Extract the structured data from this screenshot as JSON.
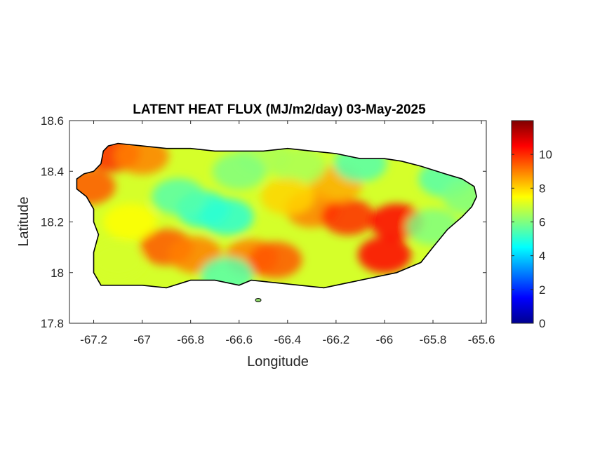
{
  "chart_data": {
    "type": "heatmap",
    "title": "LATENT HEAT FLUX (MJ/m2/day) 03-May-2025",
    "xlabel": "Longitude",
    "ylabel": "Latitude",
    "xlim": [
      -67.3,
      -65.58
    ],
    "ylim": [
      17.8,
      18.6
    ],
    "xticks": [
      -67.2,
      -67,
      -66.8,
      -66.6,
      -66.4,
      -66.2,
      -66,
      -65.8,
      -65.6
    ],
    "xtick_labels": [
      "-67.2",
      "-67",
      "-66.8",
      "-66.6",
      "-66.4",
      "-66.2",
      "-66",
      "-65.8",
      "-65.6"
    ],
    "yticks": [
      17.8,
      18,
      18.2,
      18.4,
      18.6
    ],
    "ytick_labels": [
      "17.8",
      "18",
      "18.2",
      "18.4",
      "18.6"
    ],
    "colorbar": {
      "colormap": "jet",
      "range": [
        0,
        12
      ],
      "ticks": [
        0,
        2,
        4,
        6,
        8,
        10
      ],
      "tick_labels": [
        "0",
        "2",
        "4",
        "6",
        "8",
        "10"
      ]
    },
    "grid": false,
    "region_outline": [
      [
        -67.27,
        18.37
      ],
      [
        -67.24,
        18.39
      ],
      [
        -67.2,
        18.4
      ],
      [
        -67.17,
        18.43
      ],
      [
        -67.16,
        18.48
      ],
      [
        -67.14,
        18.5
      ],
      [
        -67.1,
        18.51
      ],
      [
        -67.0,
        18.5
      ],
      [
        -66.9,
        18.49
      ],
      [
        -66.8,
        18.49
      ],
      [
        -66.7,
        18.48
      ],
      [
        -66.6,
        18.48
      ],
      [
        -66.5,
        18.48
      ],
      [
        -66.4,
        18.49
      ],
      [
        -66.3,
        18.48
      ],
      [
        -66.2,
        18.47
      ],
      [
        -66.1,
        18.45
      ],
      [
        -66.0,
        18.45
      ],
      [
        -65.93,
        18.44
      ],
      [
        -65.85,
        18.42
      ],
      [
        -65.75,
        18.39
      ],
      [
        -65.68,
        18.37
      ],
      [
        -65.63,
        18.34
      ],
      [
        -65.62,
        18.3
      ],
      [
        -65.64,
        18.26
      ],
      [
        -65.68,
        18.22
      ],
      [
        -65.74,
        18.17
      ],
      [
        -65.8,
        18.1
      ],
      [
        -65.85,
        18.04
      ],
      [
        -65.95,
        18.0
      ],
      [
        -66.05,
        17.98
      ],
      [
        -66.15,
        17.96
      ],
      [
        -66.25,
        17.94
      ],
      [
        -66.35,
        17.95
      ],
      [
        -66.45,
        17.96
      ],
      [
        -66.55,
        17.97
      ],
      [
        -66.6,
        17.95
      ],
      [
        -66.7,
        17.97
      ],
      [
        -66.8,
        17.97
      ],
      [
        -66.9,
        17.94
      ],
      [
        -67.0,
        17.95
      ],
      [
        -67.1,
        17.95
      ],
      [
        -67.17,
        17.95
      ],
      [
        -67.2,
        18.0
      ],
      [
        -67.2,
        18.08
      ],
      [
        -67.18,
        18.15
      ],
      [
        -67.2,
        18.2
      ],
      [
        -67.2,
        18.25
      ],
      [
        -67.23,
        18.3
      ],
      [
        -67.27,
        18.33
      ]
    ],
    "value_hotspots": [
      {
        "lon": -67.22,
        "lat": 18.34,
        "value": 9.5
      },
      {
        "lon": -67.12,
        "lat": 18.47,
        "value": 10.0
      },
      {
        "lon": -67.0,
        "lat": 18.46,
        "value": 9.0
      },
      {
        "lon": -66.9,
        "lat": 18.1,
        "value": 9.5
      },
      {
        "lon": -66.78,
        "lat": 18.07,
        "value": 9.0
      },
      {
        "lon": -66.55,
        "lat": 18.06,
        "value": 9.0
      },
      {
        "lon": -66.45,
        "lat": 18.05,
        "value": 9.5
      },
      {
        "lon": -66.3,
        "lat": 18.25,
        "value": 9.0
      },
      {
        "lon": -66.15,
        "lat": 18.22,
        "value": 10.0
      },
      {
        "lon": -66.0,
        "lat": 18.07,
        "value": 10.5
      },
      {
        "lon": -65.95,
        "lat": 18.2,
        "value": 10.5
      },
      {
        "lon": -66.2,
        "lat": 18.35,
        "value": 8.5
      },
      {
        "lon": -66.75,
        "lat": 18.25,
        "value": 5.0
      },
      {
        "lon": -66.65,
        "lat": 18.22,
        "value": 5.0
      },
      {
        "lon": -66.85,
        "lat": 18.3,
        "value": 5.5
      },
      {
        "lon": -65.75,
        "lat": 18.37,
        "value": 5.5
      },
      {
        "lon": -65.8,
        "lat": 18.18,
        "value": 6.0
      },
      {
        "lon": -66.1,
        "lat": 18.43,
        "value": 5.5
      },
      {
        "lon": -66.5,
        "lat": 18.46,
        "value": 6.5
      },
      {
        "lon": -66.35,
        "lat": 18.42,
        "value": 6.5
      },
      {
        "lon": -66.4,
        "lat": 18.3,
        "value": 8.0
      },
      {
        "lon": -66.6,
        "lat": 18.4,
        "value": 6.0
      },
      {
        "lon": -67.05,
        "lat": 18.2,
        "value": 7.5
      },
      {
        "lon": -67.1,
        "lat": 18.05,
        "value": 7.0
      },
      {
        "lon": -66.65,
        "lat": 17.99,
        "value": 5.5
      },
      {
        "lon": -65.65,
        "lat": 18.3,
        "value": 6.0
      }
    ],
    "base_value": 7.0
  }
}
